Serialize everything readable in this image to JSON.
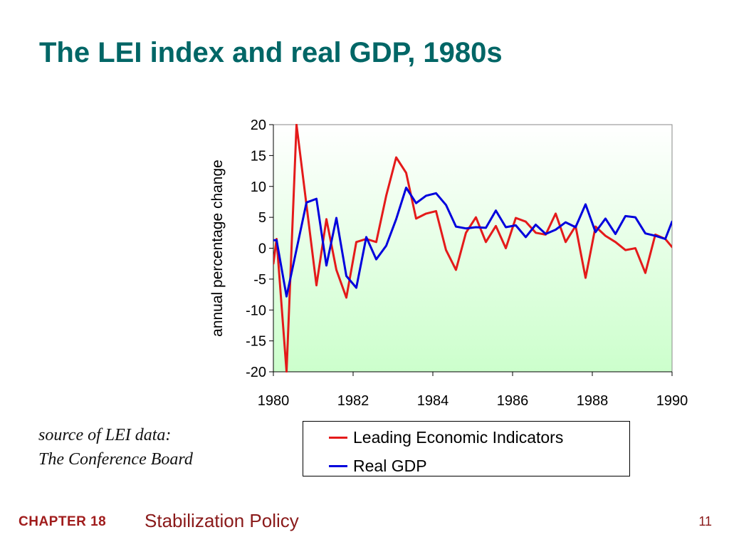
{
  "slide": {
    "title": "The LEI index and real GDP, 1980s"
  },
  "source_note": {
    "line1": "source of LEI data:",
    "line2": "The Conference Board"
  },
  "footer": {
    "chapter": "CHAPTER 18",
    "topic": "Stabilization Policy",
    "page": "11"
  },
  "colors": {
    "title": "#006666",
    "lei": "#e41a1a",
    "gdp": "#0000dd",
    "plot_bg_top": "#ffffff",
    "plot_bg_bottom": "#ccffcc",
    "footer_chapter": "#a01c1c",
    "footer_text": "#8a1a1a"
  },
  "chart_data": {
    "type": "line",
    "title": "",
    "xlabel": "",
    "ylabel": "annual percentage change",
    "xlim": [
      1980,
      1990
    ],
    "ylim": [
      -20,
      20
    ],
    "xticks": [
      "1980",
      "1982",
      "1984",
      "1986",
      "1988",
      "1990"
    ],
    "yticks": [
      "20",
      "15",
      "10",
      "5",
      "0",
      "-5",
      "-10",
      "-15",
      "-20"
    ],
    "grid": false,
    "legend": "below",
    "series": [
      {
        "name": "Leading Economic Indicators",
        "color": "#e41a1a",
        "x": [
          1980.0,
          1980.08,
          1980.33,
          1980.58,
          1980.83,
          1981.08,
          1981.33,
          1981.58,
          1981.83,
          1982.08,
          1982.33,
          1982.58,
          1982.83,
          1983.08,
          1983.33,
          1983.58,
          1983.83,
          1984.08,
          1984.33,
          1984.58,
          1984.83,
          1985.08,
          1985.33,
          1985.58,
          1985.83,
          1986.08,
          1986.33,
          1986.58,
          1986.83,
          1987.08,
          1987.33,
          1987.58,
          1987.83,
          1988.08,
          1988.33,
          1988.58,
          1988.83,
          1989.08,
          1989.33,
          1989.58,
          1989.83,
          1990.0
        ],
        "y": [
          -2.5,
          1.5,
          -20.0,
          20.0,
          7.0,
          -6.0,
          4.7,
          -3.5,
          -8.0,
          1.0,
          1.5,
          1.0,
          8.5,
          14.7,
          12.2,
          4.8,
          5.6,
          6.0,
          -0.3,
          -3.5,
          2.5,
          5.0,
          1.0,
          3.6,
          0.0,
          4.9,
          4.3,
          2.5,
          2.2,
          5.6,
          1.0,
          3.6,
          -4.8,
          3.5,
          2.0,
          1.0,
          -0.3,
          0.0,
          -4.0,
          2.2,
          1.5,
          0.2
        ]
      },
      {
        "name": "Real GDP",
        "color": "#0000dd",
        "x": [
          1980.0,
          1980.08,
          1980.33,
          1980.83,
          1981.08,
          1981.33,
          1981.58,
          1981.83,
          1982.08,
          1982.33,
          1982.58,
          1982.83,
          1983.08,
          1983.33,
          1983.58,
          1983.83,
          1984.08,
          1984.33,
          1984.58,
          1984.83,
          1985.08,
          1985.33,
          1985.58,
          1985.83,
          1986.08,
          1986.33,
          1986.58,
          1986.83,
          1987.08,
          1987.33,
          1987.58,
          1987.83,
          1988.08,
          1988.33,
          1988.58,
          1988.83,
          1989.08,
          1989.33,
          1989.58,
          1989.83,
          1990.0
        ],
        "y": [
          1.3,
          1.3,
          -7.8,
          7.4,
          8.0,
          -2.8,
          4.9,
          -4.5,
          -6.4,
          1.8,
          -1.8,
          0.4,
          4.7,
          9.8,
          7.3,
          8.5,
          8.9,
          7.0,
          3.5,
          3.2,
          3.4,
          3.3,
          6.1,
          3.4,
          3.7,
          1.8,
          3.8,
          2.3,
          3.0,
          4.2,
          3.4,
          7.1,
          2.6,
          4.8,
          2.3,
          5.2,
          5.0,
          2.4,
          2.0,
          1.5,
          4.3
        ]
      }
    ]
  }
}
